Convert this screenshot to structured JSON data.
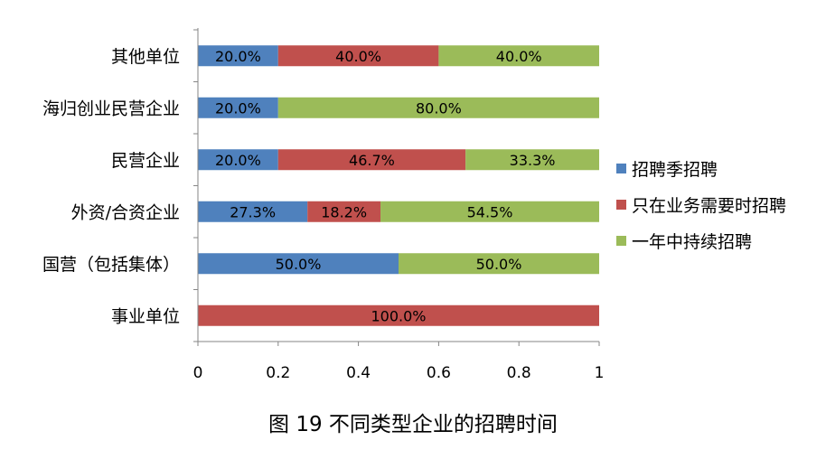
{
  "chart_data": {
    "type": "bar",
    "orientation": "horizontal",
    "stacked": true,
    "categories": [
      "其他单位",
      "海归创业民营企业",
      "民营企业",
      "外资/合资企业",
      "国营（包括集体）",
      "事业单位"
    ],
    "series": [
      {
        "name": "招聘季招聘",
        "color": "#4f81bd",
        "values": [
          0.2,
          0.2,
          0.2,
          0.273,
          0.5,
          0.0
        ],
        "labels": [
          "20.0%",
          "20.0%",
          "20.0%",
          "27.3%",
          "50.0%",
          ""
        ]
      },
      {
        "name": "只在业务需要时招聘",
        "color": "#c0504d",
        "values": [
          0.4,
          0.0,
          0.467,
          0.182,
          0.0,
          1.0
        ],
        "labels": [
          "40.0%",
          "",
          "46.7%",
          "18.2%",
          "",
          "100.0%"
        ]
      },
      {
        "name": "一年中持续招聘",
        "color": "#9bbb59",
        "values": [
          0.4,
          0.8,
          0.333,
          0.545,
          0.5,
          0.0
        ],
        "labels": [
          "40.0%",
          "80.0%",
          "33.3%",
          "54.5%",
          "50.0%",
          ""
        ]
      }
    ],
    "xlim": [
      0,
      1
    ],
    "xticks": [
      "0",
      "0.2",
      "0.4",
      "0.6",
      "0.8",
      "1"
    ],
    "xtick_values": [
      0,
      0.2,
      0.4,
      0.6,
      0.8,
      1
    ],
    "grid": false,
    "legend_position": "right",
    "title": "图 19 不同类型企业的招聘时间",
    "xlabel": "",
    "ylabel": ""
  }
}
